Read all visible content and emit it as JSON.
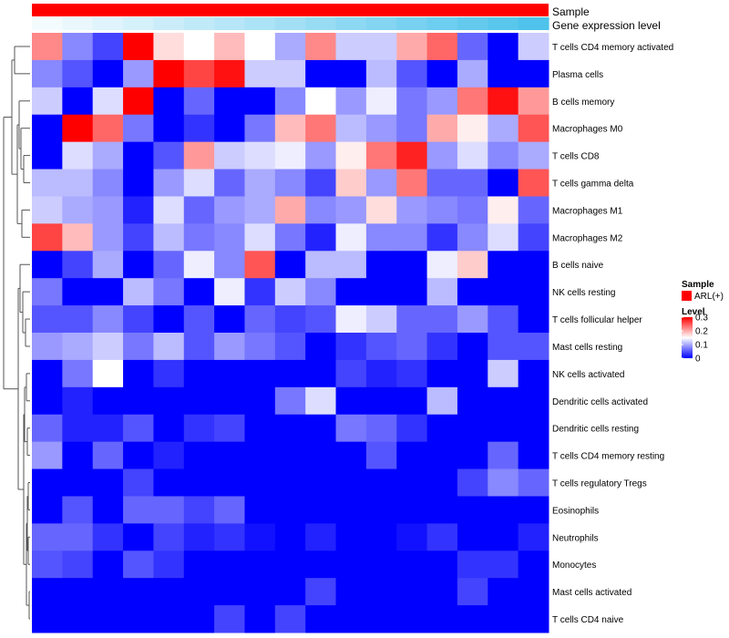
{
  "chart_data": {
    "type": "heatmap",
    "title": "",
    "annotation_tracks": [
      {
        "name": "Sample",
        "color_scale": "constant",
        "color": "#ff0000"
      },
      {
        "name": "Gene expression level",
        "color_scale": "gradient",
        "low_color": "#f4fbfe",
        "high_color": "#4fc3eb"
      }
    ],
    "rows": [
      "T cells CD4 memory activated",
      "Plasma cells",
      "B cells memory",
      "Macrophages M0",
      "T cells CD8",
      "T cells gamma delta",
      "Macrophages M1",
      "Macrophages M2",
      "B cells naive",
      "NK cells resting",
      "T cells follicular helper",
      "Mast cells resting",
      "NK cells activated",
      "Dendritic cells activated",
      "Dendritic cells resting",
      "T cells CD4 memory resting",
      "T cells regulatory  Tregs",
      "Eosinophils",
      "Neutrophils",
      "Monocytes",
      "Mast cells activated",
      "T cells CD4 naive"
    ],
    "n_columns": 17,
    "values": [
      [
        0.22,
        0.08,
        0.04,
        0.3,
        0.17,
        0.15,
        0.19,
        0.15,
        0.1,
        0.22,
        0.12,
        0.12,
        0.2,
        0.24,
        0.06,
        0.0,
        0.12
      ],
      [
        0.08,
        0.05,
        0.0,
        0.09,
        0.3,
        0.26,
        0.29,
        0.12,
        0.12,
        0.0,
        0.0,
        0.11,
        0.05,
        0.0,
        0.1,
        0.0,
        0.0
      ],
      [
        0.12,
        0.0,
        0.13,
        0.3,
        0.0,
        0.06,
        0.0,
        0.0,
        0.08,
        0.15,
        0.09,
        0.14,
        0.07,
        0.09,
        0.23,
        0.29,
        0.21
      ],
      [
        0.0,
        0.3,
        0.24,
        0.07,
        0.0,
        0.03,
        0.0,
        0.07,
        0.19,
        0.23,
        0.11,
        0.09,
        0.07,
        0.2,
        0.16,
        0.1,
        0.25
      ],
      [
        0.0,
        0.13,
        0.1,
        0.0,
        0.05,
        0.21,
        0.12,
        0.13,
        0.14,
        0.09,
        0.16,
        0.23,
        0.28,
        0.09,
        0.13,
        0.08,
        0.1
      ],
      [
        0.11,
        0.11,
        0.08,
        0.0,
        0.09,
        0.13,
        0.06,
        0.1,
        0.08,
        0.04,
        0.18,
        0.09,
        0.23,
        0.06,
        0.06,
        0.0,
        0.25
      ],
      [
        0.12,
        0.1,
        0.09,
        0.02,
        0.13,
        0.06,
        0.09,
        0.1,
        0.2,
        0.08,
        0.09,
        0.17,
        0.09,
        0.08,
        0.07,
        0.16,
        0.06
      ],
      [
        0.26,
        0.19,
        0.09,
        0.04,
        0.11,
        0.07,
        0.08,
        0.13,
        0.07,
        0.02,
        0.14,
        0.08,
        0.08,
        0.03,
        0.08,
        0.13,
        0.04
      ],
      [
        0.0,
        0.04,
        0.1,
        0.0,
        0.06,
        0.14,
        0.08,
        0.25,
        0.0,
        0.11,
        0.11,
        0.0,
        0.0,
        0.14,
        0.18,
        0.0,
        0.0
      ],
      [
        0.07,
        0.0,
        0.0,
        0.11,
        0.07,
        0.0,
        0.14,
        0.03,
        0.12,
        0.08,
        0.0,
        0.0,
        0.0,
        0.11,
        0.0,
        0.0,
        0.0
      ],
      [
        0.05,
        0.05,
        0.08,
        0.04,
        0.0,
        0.05,
        0.0,
        0.06,
        0.04,
        0.05,
        0.14,
        0.12,
        0.06,
        0.06,
        0.09,
        0.05,
        0.0
      ],
      [
        0.09,
        0.1,
        0.12,
        0.07,
        0.11,
        0.05,
        0.09,
        0.07,
        0.05,
        0.0,
        0.03,
        0.05,
        0.06,
        0.03,
        0.0,
        0.05,
        0.05
      ],
      [
        0.0,
        0.07,
        0.15,
        0.0,
        0.03,
        0.0,
        0.0,
        0.0,
        0.0,
        0.0,
        0.04,
        0.02,
        0.03,
        0.0,
        0.0,
        0.12,
        0.0
      ],
      [
        0.0,
        0.02,
        0.0,
        0.0,
        0.0,
        0.0,
        0.0,
        0.0,
        0.07,
        0.13,
        0.0,
        0.0,
        0.0,
        0.11,
        0.0,
        0.0,
        0.0
      ],
      [
        0.06,
        0.02,
        0.02,
        0.05,
        0.0,
        0.03,
        0.04,
        0.0,
        0.0,
        0.0,
        0.07,
        0.06,
        0.03,
        0.0,
        0.0,
        0.0,
        0.0
      ],
      [
        0.09,
        0.0,
        0.06,
        0.0,
        0.02,
        0.0,
        0.0,
        0.0,
        0.0,
        0.0,
        0.0,
        0.05,
        0.0,
        0.0,
        0.0,
        0.06,
        0.0
      ],
      [
        0.0,
        0.0,
        0.0,
        0.04,
        0.0,
        0.0,
        0.0,
        0.0,
        0.0,
        0.0,
        0.0,
        0.0,
        0.0,
        0.0,
        0.04,
        0.08,
        0.06
      ],
      [
        0.0,
        0.05,
        0.0,
        0.06,
        0.06,
        0.04,
        0.06,
        0.0,
        0.0,
        0.0,
        0.0,
        0.0,
        0.0,
        0.0,
        0.0,
        0.0,
        0.0
      ],
      [
        0.06,
        0.06,
        0.03,
        0.0,
        0.04,
        0.02,
        0.03,
        0.01,
        0.0,
        0.02,
        0.0,
        0.0,
        0.01,
        0.03,
        0.0,
        0.0,
        0.02
      ],
      [
        0.05,
        0.04,
        0.0,
        0.05,
        0.03,
        0.0,
        0.0,
        0.0,
        0.0,
        0.0,
        0.0,
        0.0,
        0.0,
        0.0,
        0.03,
        0.03,
        0.0
      ],
      [
        0.0,
        0.0,
        0.0,
        0.0,
        0.0,
        0.0,
        0.0,
        0.0,
        0.0,
        0.04,
        0.0,
        0.0,
        0.0,
        0.0,
        0.04,
        0.0,
        0.0
      ],
      [
        0.0,
        0.0,
        0.0,
        0.0,
        0.0,
        0.0,
        0.04,
        0.0,
        0.04,
        0.0,
        0.0,
        0.0,
        0.0,
        0.0,
        0.0,
        0.0,
        0.0
      ]
    ],
    "color_scale": {
      "low": "#0000ff",
      "mid": "#ffffff",
      "high": "#ff0000",
      "min": 0,
      "mid_value": 0.15,
      "max": 0.3
    },
    "row_dendrogram": "left",
    "legend": {
      "position": "right",
      "sample_title": "Sample",
      "sample_entry": "ARL(+)",
      "sample_color": "#ff0000",
      "level_title": "Level",
      "level_ticks": [
        "0.3",
        "0.2",
        "0.1",
        "0"
      ],
      "level_tick_values": [
        0.3,
        0.2,
        0.1,
        0
      ]
    }
  }
}
